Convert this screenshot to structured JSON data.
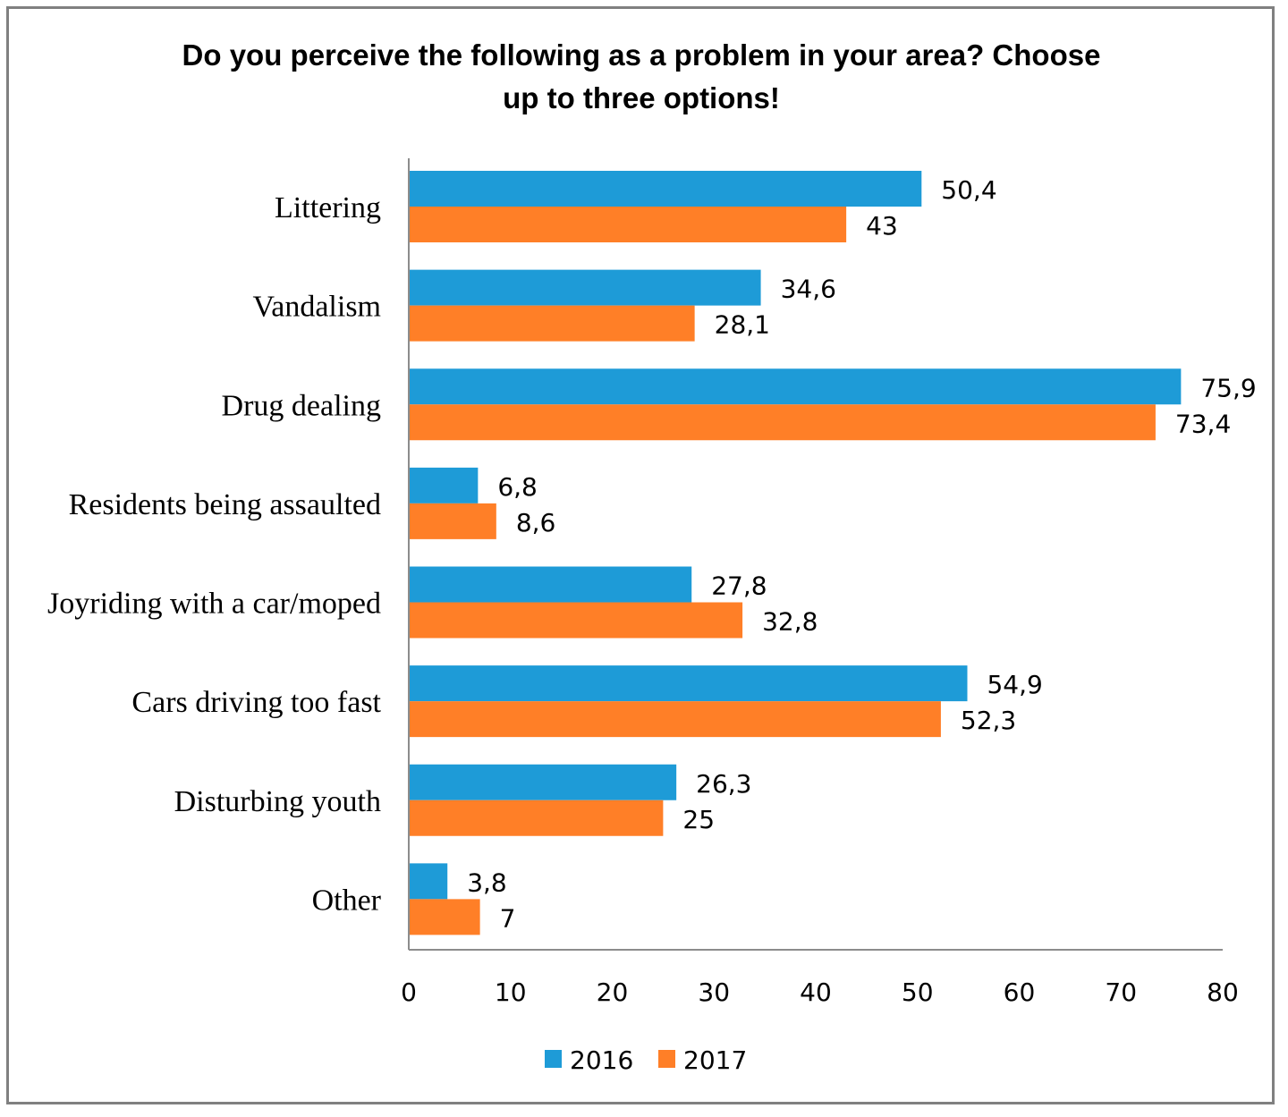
{
  "chart_data": {
    "type": "bar",
    "orientation": "horizontal",
    "title": "Do you perceive the following as a problem in your area? Choose up to three options!",
    "title_lines": [
      "Do you perceive the following as a problem in your area? Choose",
      "up to three options!"
    ],
    "categories": [
      "Littering",
      "Vandalism",
      "Drug dealing",
      "Residents being assaulted",
      "Joyriding with a car/moped",
      "Cars driving too fast",
      "Disturbing youth",
      "Other"
    ],
    "series": [
      {
        "name": "2016",
        "color": "#1E9BD7",
        "values": [
          50.4,
          34.6,
          75.9,
          6.8,
          27.8,
          54.9,
          26.3,
          3.8
        ],
        "labels": [
          "50,4",
          "34,6",
          "75,9",
          "6,8",
          "27,8",
          "54,9",
          "26,3",
          "3,8"
        ]
      },
      {
        "name": "2017",
        "color": "#FF7F27",
        "values": [
          43,
          28.1,
          73.4,
          8.6,
          32.8,
          52.3,
          25,
          7
        ],
        "labels": [
          "43",
          "28,1",
          "73,4",
          "8,6",
          "32,8",
          "52,3",
          "25",
          "7"
        ]
      }
    ],
    "xlabel": "",
    "ylabel": "",
    "xlim": [
      0,
      80
    ],
    "xticks": [
      0,
      10,
      20,
      30,
      40,
      50,
      60,
      70,
      80
    ],
    "grid": false,
    "legend": "bottom"
  }
}
